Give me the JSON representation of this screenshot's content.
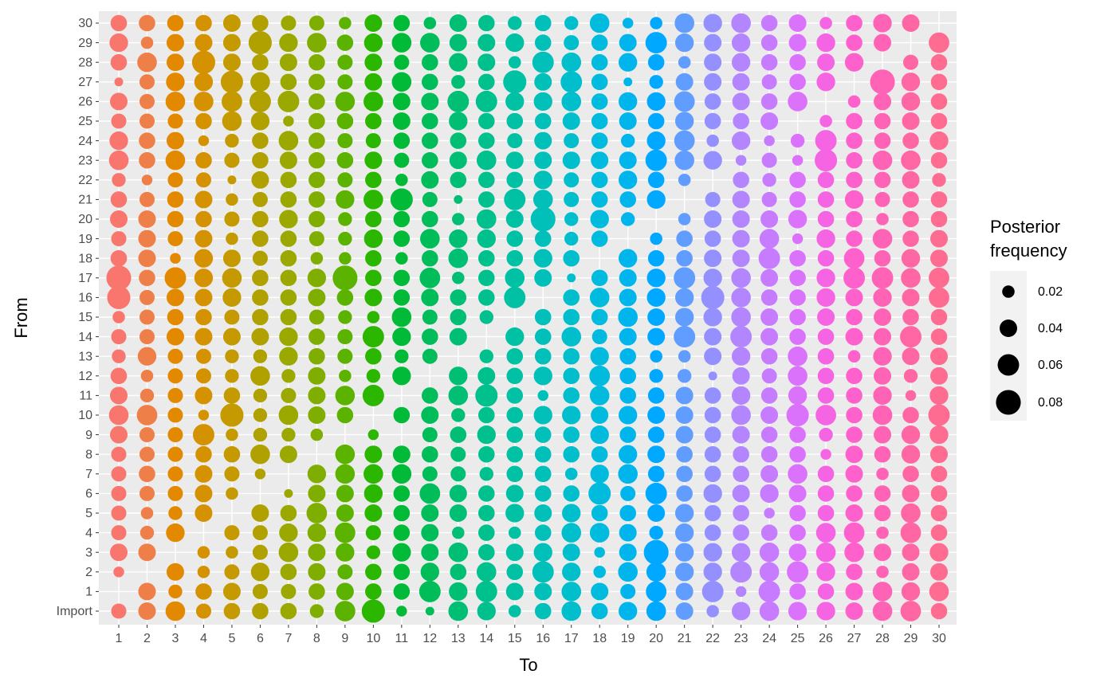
{
  "chart_data": {
    "type": "bubble_grid",
    "x_title": "To",
    "y_title": "From",
    "x_categories": [
      "1",
      "2",
      "3",
      "4",
      "5",
      "6",
      "7",
      "8",
      "9",
      "10",
      "11",
      "12",
      "13",
      "14",
      "15",
      "16",
      "17",
      "18",
      "19",
      "20",
      "21",
      "22",
      "23",
      "24",
      "25",
      "26",
      "27",
      "28",
      "29",
      "30"
    ],
    "y_categories": [
      "Import",
      "1",
      "2",
      "3",
      "4",
      "5",
      "6",
      "7",
      "8",
      "9",
      "10",
      "11",
      "12",
      "13",
      "14",
      "15",
      "16",
      "17",
      "18",
      "19",
      "20",
      "21",
      "22",
      "23",
      "24",
      "25",
      "26",
      "27",
      "28",
      "29",
      "30"
    ],
    "colors": [
      "#F8766D",
      "#EF7F49",
      "#E38900",
      "#D49200",
      "#C49A00",
      "#B0A100",
      "#9AA800",
      "#7FAE00",
      "#5BB300",
      "#2BB600",
      "#00BA38",
      "#00BC59",
      "#00BF74",
      "#00C08D",
      "#00C1A4",
      "#00C0B9",
      "#00BECC",
      "#00BBDD",
      "#00B5EC",
      "#00A9FF",
      "#619CFF",
      "#9590FF",
      "#B385FF",
      "#C77CFF",
      "#DB72FB",
      "#F564E3",
      "#FF61CC",
      "#FF63B6",
      "#FF67A4",
      "#FF6C91"
    ],
    "values": [
      [
        0.03,
        null,
        0.015,
        0.04,
        0.03,
        0.03,
        0.03,
        0.03,
        0.03,
        0.04,
        0.05,
        0.04,
        0.035,
        0.025,
        0.03,
        0.02,
        0.07,
        0.08,
        0.035,
        0.03,
        0.04,
        0.035,
        0.025,
        0.05,
        0.045,
        0.03,
        0.04,
        0.01,
        0.035,
        0.045,
        0.035
      ],
      [
        0.04,
        0.04,
        null,
        0.04,
        0.025,
        0.02,
        0.03,
        0.035,
        0.03,
        0.03,
        0.055,
        0.025,
        0.02,
        0.045,
        0.03,
        0.03,
        0.03,
        0.035,
        0.04,
        0.04,
        0.04,
        0.03,
        0.015,
        0.035,
        0.035,
        0.03,
        0.03,
        0.03,
        0.05,
        0.02,
        0.035
      ],
      [
        0.05,
        0.025,
        0.04,
        null,
        0.045,
        0.025,
        0.03,
        0.03,
        0.03,
        0.03,
        0.03,
        0.03,
        0.03,
        0.03,
        0.04,
        0.035,
        0.04,
        0.06,
        0.015,
        0.03,
        0.035,
        0.035,
        0.03,
        0.05,
        0.04,
        0.03,
        0.05,
        0.045,
        0.04,
        0.04,
        0.035
      ],
      [
        0.03,
        0.035,
        0.02,
        0.02,
        null,
        0.04,
        0.04,
        0.04,
        0.035,
        0.06,
        0.015,
        0.04,
        0.03,
        0.03,
        0.04,
        0.035,
        0.04,
        0.045,
        0.045,
        0.04,
        0.035,
        0.04,
        0.03,
        0.035,
        0.015,
        0.035,
        0.05,
        0.045,
        0.07,
        0.04,
        0.035
      ],
      [
        0.035,
        0.04,
        0.03,
        0.02,
        0.03,
        null,
        0.02,
        0.03,
        0.035,
        0.02,
        0.07,
        0.035,
        0.025,
        0.025,
        0.04,
        0.03,
        0.045,
        0.05,
        0.04,
        0.02,
        0.03,
        0.02,
        0.01,
        0.03,
        0.025,
        0.05,
        0.055,
        0.065,
        0.04,
        0.04,
        0.04
      ],
      [
        0.035,
        0.03,
        0.045,
        0.03,
        0.03,
        0.04,
        null,
        0.015,
        0.05,
        0.025,
        0.025,
        0.025,
        0.05,
        0.025,
        0.04,
        0.035,
        0.035,
        0.035,
        0.03,
        0.035,
        0.035,
        0.03,
        0.04,
        0.035,
        0.035,
        0.045,
        0.06,
        0.05,
        0.035,
        0.07,
        0.035
      ],
      [
        0.035,
        0.03,
        0.035,
        0.05,
        0.045,
        0.035,
        0.01,
        null,
        0.04,
        0.025,
        0.05,
        0.03,
        0.025,
        0.045,
        0.045,
        0.035,
        0.035,
        0.035,
        0.035,
        0.035,
        0.045,
        0.035,
        0.035,
        0.04,
        0.05,
        0.015,
        0.06,
        0.035,
        0.04,
        0.045,
        0.03
      ],
      [
        0.025,
        0.035,
        0.04,
        0.04,
        0.045,
        0.055,
        0.04,
        0.045,
        null,
        0.02,
        0.04,
        0.04,
        0.04,
        0.035,
        0.035,
        0.03,
        0.04,
        0.045,
        0.02,
        0.03,
        0.035,
        0.035,
        0.035,
        0.035,
        0.035,
        0.035,
        0.035,
        0.035,
        0.035,
        0.05,
        0.03
      ],
      [
        0.055,
        0.04,
        0.03,
        0.045,
        0.055,
        0.04,
        0.04,
        0.05,
        0.05,
        null,
        0.035,
        0.05,
        0.02,
        0.03,
        0.03,
        0.025,
        0.035,
        0.08,
        0.02,
        0.025,
        0.025,
        0.045,
        0.03,
        0.035,
        0.03,
        0.035,
        0.05,
        0.03,
        0.03,
        0.035,
        0.02
      ],
      [
        0.07,
        0.035,
        0.035,
        0.025,
        0.03,
        0.04,
        0.045,
        0.05,
        0.04,
        0.015,
        null,
        0.06,
        0.025,
        0.035,
        0.06,
        0.02,
        0.04,
        0.035,
        0.035,
        0.045,
        0.035,
        0.05,
        0.035,
        0.04,
        0.03,
        0.035,
        0.05,
        0.04,
        0.04,
        0.045,
        0.04
      ],
      [
        0.015,
        0.035,
        0.035,
        0.045,
        0.035,
        0.035,
        0.035,
        0.05,
        0.04,
        null,
        0.035,
        null,
        0.045,
        0.025,
        0.045,
        0.05,
        0.035,
        0.035,
        0.02,
        0.035,
        0.035,
        0.065,
        0.02,
        0.03,
        0.035,
        0.04,
        0.04,
        0.05,
        0.03,
        0.05,
        0.035
      ],
      [
        0.01,
        0.06,
        0.045,
        0.04,
        0.04,
        0.04,
        0.055,
        0.03,
        0.035,
        0.03,
        0.04,
        0.035,
        null,
        0.03,
        0.035,
        0.03,
        0.04,
        0.055,
        0.035,
        0.05,
        0.035,
        0.03,
        0.04,
        0.035,
        0.035,
        0.035,
        0.04,
        0.035,
        0.035,
        0.05,
        0.02
      ],
      [
        0.05,
        0.045,
        0.035,
        0.05,
        0.02,
        0.04,
        0.04,
        0.03,
        0.03,
        0.035,
        0.025,
        0.05,
        0.045,
        null,
        0.04,
        0.035,
        0.035,
        0.02,
        0.05,
        0.045,
        0.02,
        0.01,
        0.035,
        0.04,
        0.035,
        0.045,
        0.06,
        0.025,
        0.045,
        0.04,
        0.04
      ],
      [
        0.045,
        0.06,
        0.05,
        0.035,
        0.035,
        0.035,
        0.035,
        0.025,
        0.035,
        0.045,
        0.035,
        0.065,
        0.04,
        0.025,
        null,
        0.025,
        0.035,
        0.035,
        0.035,
        0.045,
        0.05,
        0.035,
        0.035,
        0.05,
        0.035,
        0.035,
        0.06,
        0.035,
        0.04,
        0.04,
        0.035
      ],
      [
        0.02,
        0.04,
        0.035,
        0.04,
        0.02,
        0.045,
        0.04,
        0.035,
        0.035,
        0.035,
        0.035,
        0.035,
        0.035,
        0.035,
        0.045,
        null,
        0.06,
        0.05,
        0.035,
        0.035,
        0.04,
        0.06,
        0.035,
        0.04,
        0.03,
        0.035,
        0.045,
        0.07,
        0.02,
        0.045,
        0.025
      ],
      [
        0.035,
        0.04,
        0.06,
        0.045,
        0.035,
        0.04,
        0.035,
        0.035,
        0.035,
        0.035,
        0.045,
        0.015,
        0.045,
        0.035,
        0.035,
        0.035,
        null,
        0.04,
        0.045,
        0.035,
        0.08,
        0.05,
        0.045,
        0.04,
        0.04,
        0.035,
        0.045,
        0.04,
        0.06,
        0.035,
        0.035
      ],
      [
        0.05,
        0.05,
        0.045,
        0.04,
        0.05,
        0.045,
        0.035,
        0.02,
        0.035,
        0.035,
        0.045,
        0.035,
        0.035,
        0.035,
        0.05,
        0.035,
        0.035,
        0.01,
        0.035,
        0.025,
        0.025,
        0.03,
        0.03,
        0.04,
        0.03,
        0.04,
        0.05,
        0.06,
        0.05,
        0.03,
        0.025
      ],
      [
        0.035,
        0.04,
        0.02,
        0.015,
        0.05,
        0.035,
        0.065,
        0.045,
        0.035,
        0.045,
        0.04,
        0.05,
        0.055,
        0.045,
        0.03,
        0.035,
        0.05,
        0.035,
        null,
        0.035,
        0.045,
        0.035,
        0.035,
        0.04,
        0.035,
        0.035,
        0.035,
        0.035,
        0.035,
        0.035,
        0.05
      ],
      [
        0.045,
        0.03,
        0.05,
        0.04,
        0.04,
        0.035,
        0.03,
        0.05,
        0.045,
        0.035,
        0.045,
        0.035,
        0.035,
        0.035,
        0.04,
        0.05,
        0.04,
        0.04,
        0.045,
        null,
        0.025,
        0.035,
        0.045,
        0.04,
        0.025,
        0.04,
        0.045,
        0.01,
        0.045,
        0.04,
        0.015
      ],
      [
        0.05,
        0.055,
        0.05,
        0.08,
        0.025,
        0.04,
        0.06,
        0.035,
        0.04,
        0.035,
        0.04,
        0.035,
        0.025,
        0.02,
        0.04,
        0.04,
        0.045,
        0.045,
        0.035,
        0.02,
        null,
        0.045,
        0.035,
        0.06,
        0.045,
        0.035,
        0.045,
        0.025,
        0.035,
        0.06,
        0.02
      ],
      [
        0.04,
        0.04,
        0.045,
        0.045,
        0.045,
        0.045,
        0.035,
        0.035,
        0.035,
        0.04,
        0.04,
        0.04,
        0.025,
        0.02,
        0.06,
        0.045,
        0.045,
        0.06,
        0.035,
        0.035,
        0.02,
        null,
        0.02,
        0.05,
        0.055,
        0.045,
        0.055,
        0.04,
        0.02,
        0.045,
        0.05
      ],
      [
        0.02,
        0.06,
        0.045,
        0.045,
        0.035,
        0.035,
        0.045,
        0.035,
        0.035,
        0.035,
        0.035,
        0.035,
        0.01,
        0.04,
        0.04,
        0.045,
        0.07,
        0.045,
        0.04,
        0.035,
        0.04,
        0.03,
        null,
        0.045,
        0.02,
        0.035,
        0.035,
        0.04,
        0.04,
        0.04,
        0.045
      ],
      [
        0.045,
        0.015,
        0.06,
        0.045,
        0.035,
        0.035,
        0.04,
        0.035,
        0.035,
        0.04,
        0.05,
        0.045,
        0.04,
        0.045,
        0.06,
        0.05,
        0.05,
        0.05,
        0.04,
        0.04,
        0.04,
        0.04,
        0.035,
        0.015,
        0.045,
        0.035,
        0.04,
        0.04,
        0.045,
        0.045,
        0.05
      ],
      [
        0.05,
        0.06,
        0.05,
        0.05,
        0.035,
        0.015,
        0.045,
        0.04,
        0.035,
        0.035,
        0.04,
        0.035,
        0.03,
        0.035,
        0.04,
        0.04,
        0.035,
        0.04,
        0.06,
        0.05,
        0.04,
        0.03,
        0.025,
        0.03,
        0.015,
        0.04,
        0.035,
        0.03,
        0.035,
        0.035,
        0.035
      ],
      [
        0.045,
        0.035,
        0.06,
        0.04,
        0.035,
        0.035,
        0.04,
        0.05,
        0.035,
        0.035,
        0.065,
        0.045,
        0.05,
        0.05,
        0.035,
        0.035,
        0.035,
        0.035,
        0.035,
        0.015,
        0.045,
        0.035,
        0.035,
        0.015,
        0.025,
        null,
        0.05,
        0.035,
        0.035,
        0.04,
        0.04
      ],
      [
        0.045,
        0.035,
        0.045,
        0.05,
        0.05,
        0.035,
        0.035,
        0.035,
        0.015,
        0.025,
        0.055,
        0.035,
        0.035,
        0.035,
        0.035,
        0.04,
        0.045,
        0.045,
        0.035,
        0.045,
        0.035,
        0.035,
        0.035,
        0.065,
        0.06,
        0.02,
        null,
        0.045,
        0.04,
        0.045,
        0.02
      ],
      [
        0.04,
        0.04,
        0.035,
        0.05,
        0.055,
        0.04,
        0.035,
        0.04,
        0.04,
        0.035,
        0.035,
        0.035,
        0.035,
        0.02,
        0.04,
        0.035,
        0.04,
        0.06,
        0.055,
        0.035,
        0.035,
        0.045,
        0.035,
        0.035,
        0.035,
        0.035,
        0.02,
        null,
        0.045,
        0.035,
        0.035
      ],
      [
        0.05,
        0.05,
        0.02,
        0.04,
        0.02,
        0.035,
        0.035,
        0.02,
        0.035,
        0.04,
        0.05,
        0.045,
        0.04,
        0.045,
        0.04,
        0.04,
        0.045,
        0.06,
        0.035,
        0.05,
        0.02,
        0.03,
        0.035,
        0.05,
        0.035,
        0.035,
        0.04,
        0.08,
        null,
        0.04,
        0.045
      ],
      [
        0.055,
        0.045,
        0.04,
        0.04,
        0.055,
        0.05,
        0.04,
        0.035,
        0.045,
        0.045,
        0.035,
        0.015,
        0.025,
        0.04,
        0.06,
        0.035,
        0.04,
        0.05,
        0.045,
        0.035,
        0.035,
        0.035,
        0.04,
        0.05,
        0.035,
        0.04,
        0.045,
        0.045,
        0.03,
        null,
        0.04
      ],
      [
        0.035,
        0.05,
        0.04,
        0.045,
        0.035,
        0.035,
        0.035,
        0.035,
        0.04,
        0.045,
        0.06,
        0.045,
        0.04,
        0.04,
        0.035,
        0.035,
        0.055,
        0.055,
        0.04,
        0.04,
        0.035,
        0.035,
        0.025,
        0.035,
        0.045,
        0.035,
        0.035,
        0.035,
        0.035,
        0.055,
        null
      ]
    ],
    "legend_title": "Posterior frequency",
    "legend_sizes": [
      0.02,
      0.04,
      0.06,
      0.08
    ]
  }
}
